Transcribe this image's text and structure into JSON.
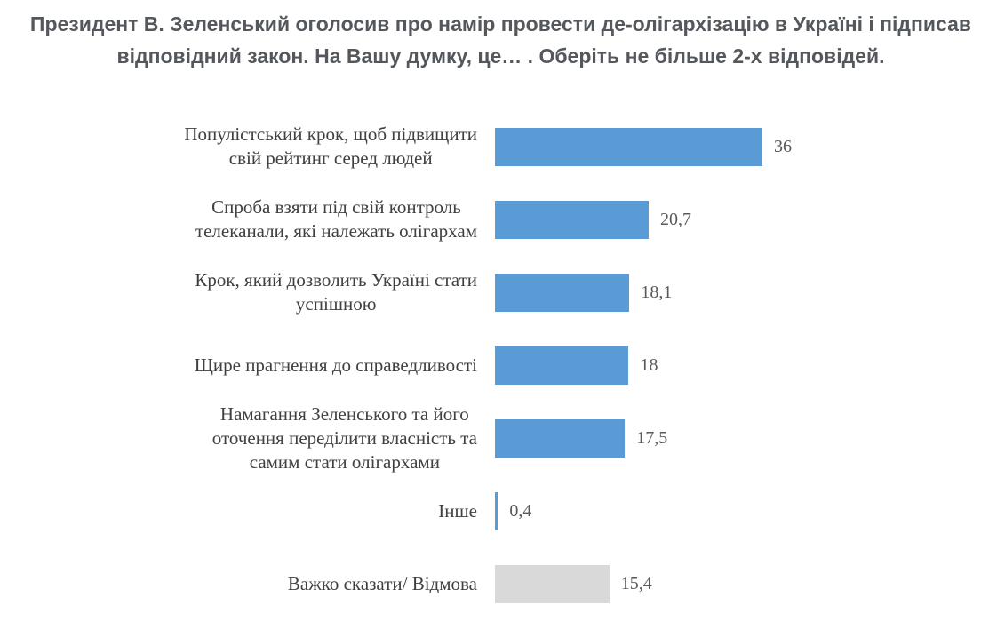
{
  "title": "Президент В. Зеленський оголосив про намір провести де-олігархізацію в Україні і підписав відповідний закон. На Вашу думку, це… . Оберіть не більше 2-х відповідей.",
  "colors": {
    "bar_primary": "#5B9BD5",
    "bar_neutral": "#D9D9D9",
    "title_text": "#54585C",
    "category_text": "#404040",
    "value_text": "#595959"
  },
  "chart_data": {
    "type": "bar",
    "orientation": "horizontal",
    "title": "Президент В. Зеленський оголосив про намір провести де-олігархізацію в Україні і підписав відповідний закон. На Вашу думку, це… . Оберіть не більше 2-х відповідей.",
    "xlabel": "",
    "ylabel": "",
    "xlim": [
      0,
      40
    ],
    "grid": false,
    "legend": false,
    "value_label_position": "outside-end",
    "categories": [
      "Популістський крок, щоб підвищити свій рейтинг серед людей",
      "Спроба взяти під свій контроль телеканали, які належать олігархам",
      "Крок, який дозволить Україні стати успішною",
      "Щире прагнення до справедливості",
      "Намагання Зеленського та його оточення переділити власність та самим стати олігархами",
      "Інше",
      "Важко сказати/ Відмова"
    ],
    "category_lines": [
      [
        "Популістський крок, щоб підвищити",
        "свій рейтинг серед людей"
      ],
      [
        "Спроба взяти під свій контроль",
        "телеканали, які належать олігархам"
      ],
      [
        "Крок, який дозволить Україні стати",
        "успішною"
      ],
      [
        "Щире прагнення до справедливості"
      ],
      [
        "Намагання Зеленського та його",
        "оточення переділити власність та",
        "самим стати олігархами"
      ],
      [
        "Інше"
      ],
      [
        "Важко сказати/ Відмова"
      ]
    ],
    "values": [
      36,
      20.7,
      18.1,
      18,
      17.5,
      0.4,
      15.4
    ],
    "value_labels": [
      "36",
      "20,7",
      "18,1",
      "18",
      "17,5",
      "0,4",
      "15,4"
    ],
    "bar_colors": [
      "#5B9BD5",
      "#5B9BD5",
      "#5B9BD5",
      "#5B9BD5",
      "#5B9BD5",
      "#5B9BD5",
      "#D9D9D9"
    ]
  }
}
